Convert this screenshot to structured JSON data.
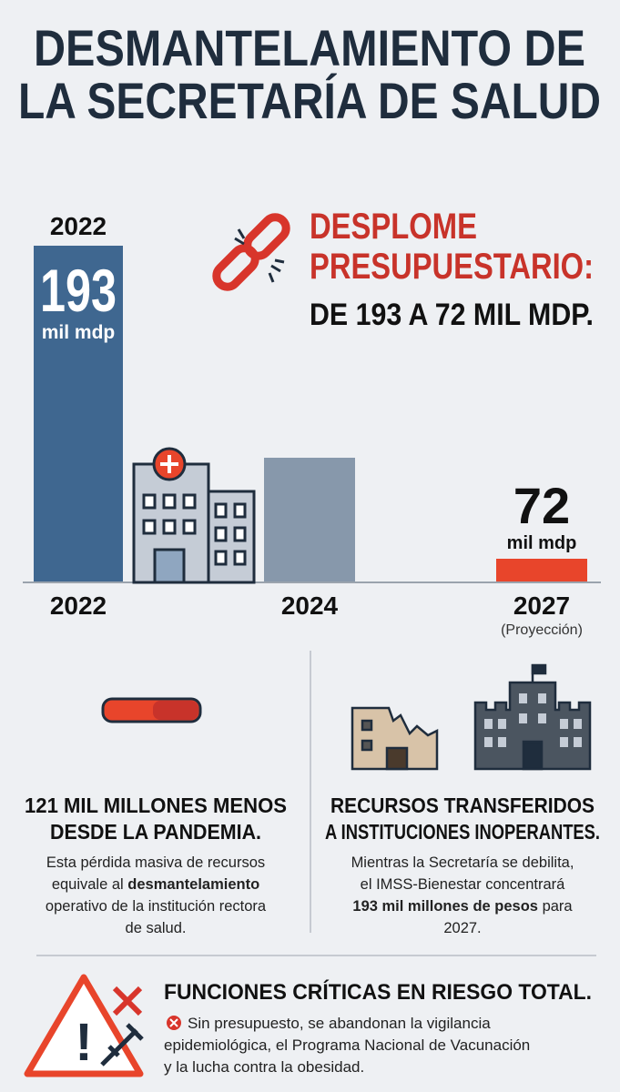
{
  "header": {
    "title_lines": [
      "DESMANTELAMIENTO DE",
      "LA SECRETARÍA DE SALUD"
    ]
  },
  "budget": {
    "start_year": "2022",
    "start_value": "193",
    "start_unit": "mil mdp",
    "headline_lines": [
      "DESPLOME",
      "PRESUPUESTARIO:"
    ],
    "subline": "DE 193 A 72 MIL MDP.",
    "years": [
      "2022",
      "2024",
      "2027"
    ],
    "projection": "(Proyección)",
    "end_value": "72",
    "end_unit": "mil mdp"
  },
  "left": {
    "title_lines": [
      "121 MIL MILLONES MENOS",
      "DESDE LA PANDEMIA."
    ],
    "body_lines": [
      [
        {
          "text": "Esta pérdida masiva de recursos",
          "bold": false
        }
      ],
      [
        {
          "text": "equivale al ",
          "bold": false
        },
        {
          "text": "desmantelamiento",
          "bold": true
        }
      ],
      [
        {
          "text": "operativo de la institución rectora",
          "bold": false
        }
      ],
      [
        {
          "text": "de salud.",
          "bold": false
        }
      ]
    ]
  },
  "right": {
    "title_lines": [
      "RECURSOS TRANSFERIDOS",
      "A INSTITUCIONES INOPERANTES."
    ],
    "body_lines": [
      [
        {
          "text": "Mientras la Secretaría se debilita,",
          "bold": false
        }
      ],
      [
        {
          "text": "el IMSS-Bienestar concentrará",
          "bold": false
        }
      ],
      [
        {
          "text": "193 mil millones de pesos",
          "bold": true
        },
        {
          "text": " para",
          "bold": false
        }
      ],
      [
        {
          "text": "2027.",
          "bold": false
        }
      ]
    ]
  },
  "bottom": {
    "title": "FUNCIONES CRÍTICAS EN RIESGO TOTAL.",
    "body_lines": [
      "Sin presupuesto, se abandonan la vigilancia",
      "epidemiológica, el Programa Nacional de Vacunación",
      "y la lucha contra la obesidad."
    ]
  }
}
